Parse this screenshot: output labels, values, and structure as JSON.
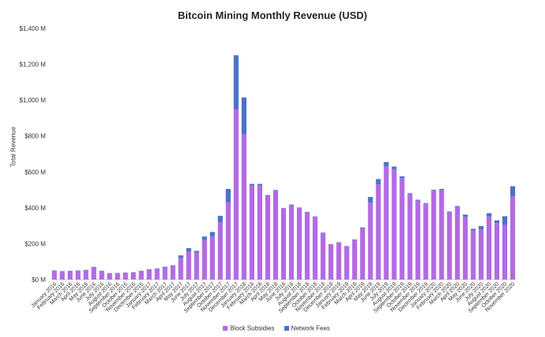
{
  "chart_data": {
    "type": "bar",
    "stacked": true,
    "title": "Bitcoin Mining Monthly Revenue (USD)",
    "xlabel": "",
    "ylabel": "Total Revenue",
    "ylim": [
      0,
      1400
    ],
    "yticks": [
      "$0 M",
      "$200 M",
      "$400 M",
      "$600 M",
      "$800 M",
      "$1,000 M",
      "$1,200 M",
      "$1,400 M"
    ],
    "ytick_values": [
      0,
      200,
      400,
      600,
      800,
      1000,
      1200,
      1400
    ],
    "grid": false,
    "legend_position": "bottom",
    "categories": [
      "January 2016",
      "February 2016",
      "March 2016",
      "April 2016",
      "May 2016",
      "June 2016",
      "July 2016",
      "August 2016",
      "September 2016",
      "October 2016",
      "November 2016",
      "December 2016",
      "January 2017",
      "February 2017",
      "March 2017",
      "April 2017",
      "May 2017",
      "June 2017",
      "July 2017",
      "August 2017",
      "September 2017",
      "October 2017",
      "November 2017",
      "December 2017",
      "January 2018",
      "February 2018",
      "March 2018",
      "April 2018",
      "May 2018",
      "June 2018",
      "July 2018",
      "August 2018",
      "September 2018",
      "October 2018",
      "November 2018",
      "December 2018",
      "January 2019",
      "February 2019",
      "March 2019",
      "April 2019",
      "May 2019",
      "June 2019",
      "July 2019",
      "August 2019",
      "September 2019",
      "October 2019",
      "November 2019",
      "December 2019",
      "January 2020",
      "February 2020",
      "March 2020",
      "April 2020",
      "May 2020",
      "June 2020",
      "July 2020",
      "August 2020",
      "September 2020",
      "October 2020",
      "November 2020"
    ],
    "series": [
      {
        "name": "Block Subsidies",
        "color": "#b36ae2",
        "values": [
          50,
          46,
          48,
          50,
          53,
          70,
          48,
          35,
          36,
          38,
          40,
          48,
          55,
          60,
          68,
          75,
          120,
          155,
          150,
          220,
          240,
          320,
          430,
          950,
          810,
          525,
          525,
          465,
          495,
          395,
          415,
          400,
          375,
          350,
          260,
          195,
          205,
          185,
          220,
          285,
          430,
          530,
          630,
          615,
          565,
          475,
          440,
          420,
          495,
          500,
          375,
          405,
          350,
          275,
          280,
          350,
          315,
          305,
          465
        ],
        "point_labels": [],
        "labels_shown": false
      },
      {
        "name": "Network Fees",
        "color": "#4a72c8",
        "values": [
          1,
          1,
          1,
          1,
          1,
          1,
          1,
          1,
          1,
          1,
          1,
          1,
          2,
          2,
          3,
          4,
          15,
          20,
          10,
          20,
          25,
          35,
          75,
          300,
          205,
          8,
          8,
          5,
          4,
          3,
          3,
          2,
          2,
          2,
          2,
          2,
          3,
          2,
          3,
          5,
          30,
          30,
          25,
          15,
          10,
          6,
          5,
          5,
          5,
          5,
          4,
          5,
          12,
          8,
          18,
          20,
          15,
          48,
          55
        ],
        "point_labels": [],
        "labels_shown": false
      }
    ]
  },
  "legend": {
    "items": [
      {
        "label": "Block Subsidies",
        "color": "#b36ae2"
      },
      {
        "label": "Network Fees",
        "color": "#4a72c8"
      }
    ]
  }
}
